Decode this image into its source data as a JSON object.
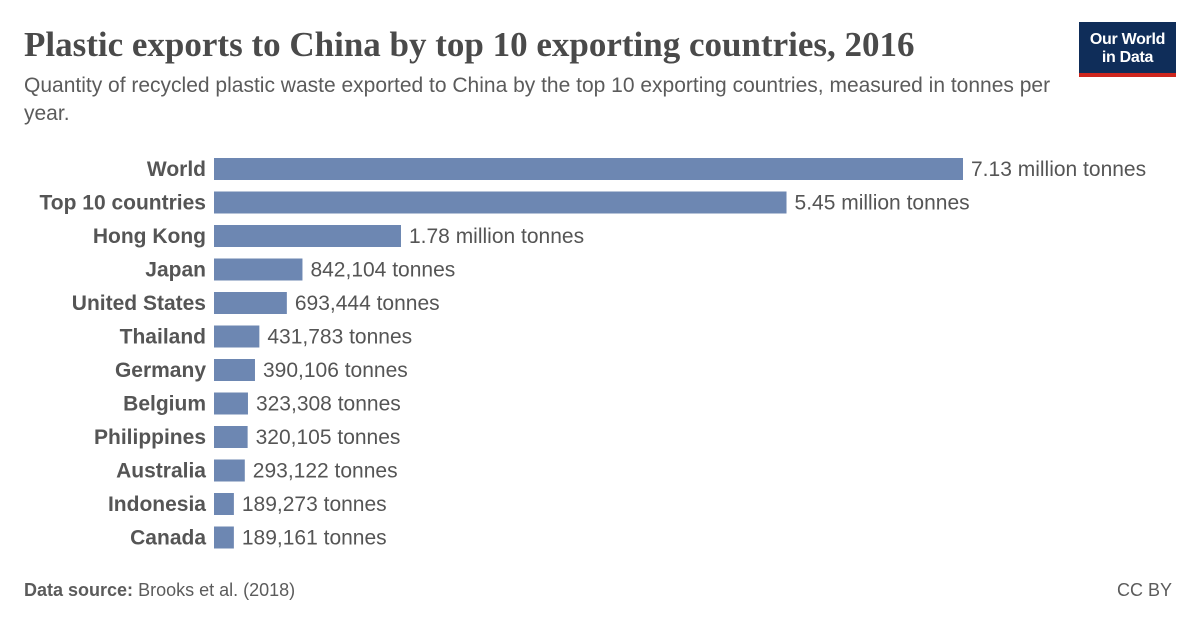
{
  "header": {
    "title": "Plastic exports to China by top 10 exporting countries, 2016",
    "subtitle": "Quantity of recycled plastic waste exported to China by the top 10 exporting countries, measured in tonnes per year."
  },
  "logo": {
    "line1": "Our World",
    "line2": "in Data"
  },
  "footer": {
    "source_label": "Data source:",
    "source_value": "Brooks et al. (2018)",
    "license": "CC BY"
  },
  "colors": {
    "bar": "#6d87b2",
    "logo_bg": "#0f2d59",
    "logo_accent": "#ce261e"
  },
  "chart_data": {
    "type": "bar",
    "orientation": "horizontal",
    "categories": [
      "World",
      "Top 10 countries",
      "Hong Kong",
      "Japan",
      "United States",
      "Thailand",
      "Germany",
      "Belgium",
      "Philippines",
      "Australia",
      "Indonesia",
      "Canada"
    ],
    "values": [
      7130000,
      5450000,
      1780000,
      842104,
      693444,
      431783,
      390106,
      323308,
      320105,
      293122,
      189273,
      189161
    ],
    "value_labels": [
      "7.13 million tonnes",
      "5.45 million tonnes",
      "1.78 million tonnes",
      "842,104 tonnes",
      "693,444 tonnes",
      "431,783 tonnes",
      "390,106 tonnes",
      "323,308 tonnes",
      "320,105 tonnes",
      "293,122 tonnes",
      "189,273 tonnes",
      "189,161 tonnes"
    ],
    "title": "Plastic exports to China by top 10 exporting countries, 2016",
    "xlabel": "",
    "ylabel": "",
    "xlim": [
      0,
      7130000
    ],
    "grid": false,
    "legend": "none"
  }
}
